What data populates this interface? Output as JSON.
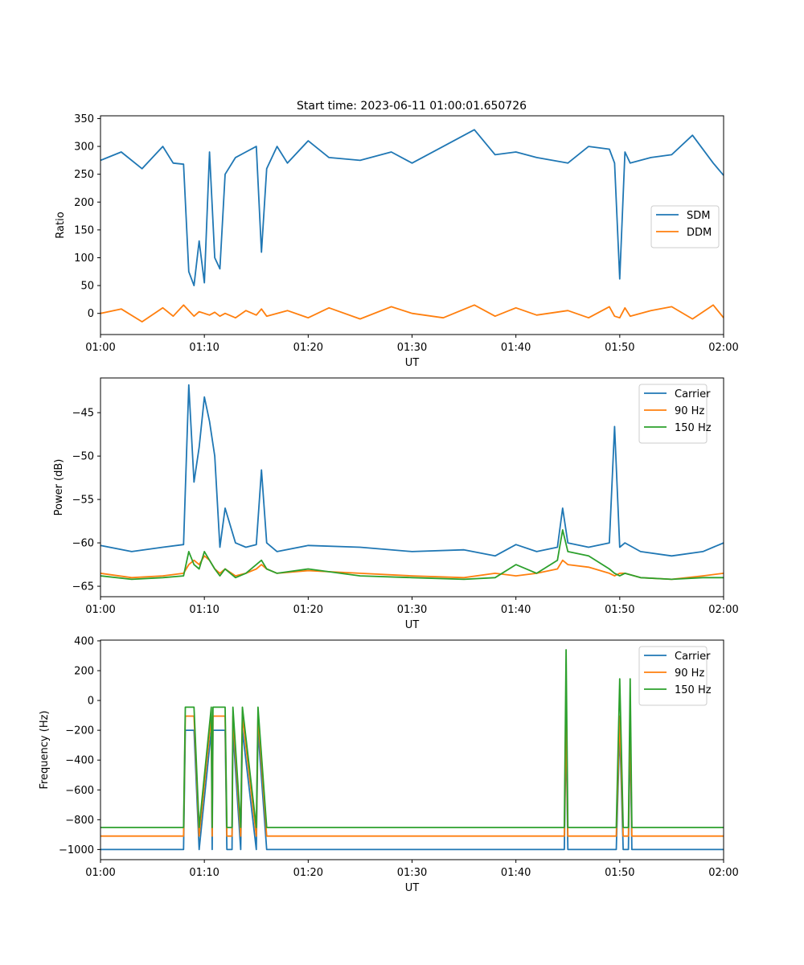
{
  "figure": {
    "title": "Start time: 2023-06-11 01:00:01.650726"
  },
  "colors": {
    "blue": "#1f77b4",
    "orange": "#ff7f0e",
    "green": "#2ca02c"
  },
  "chart_data": [
    {
      "type": "line",
      "title": "Start time: 2023-06-11 01:00:01.650726",
      "xlabel": "UT",
      "ylabel": "Ratio",
      "xlim": [
        "01:00",
        "02:00"
      ],
      "ylim": [
        -38,
        355
      ],
      "xticks": [
        "01:00",
        "01:10",
        "01:20",
        "01:30",
        "01:40",
        "01:50",
        "02:00"
      ],
      "yticks": [
        0,
        50,
        100,
        150,
        200,
        250,
        300,
        350
      ],
      "legend": "center-right",
      "grid": false,
      "x": [
        "01:00",
        "01:02",
        "01:04",
        "01:06",
        "01:07",
        "01:08",
        "01:08:30",
        "01:09",
        "01:09:30",
        "01:10",
        "01:10:30",
        "01:11",
        "01:11:30",
        "01:12",
        "01:13",
        "01:14",
        "01:15",
        "01:15:30",
        "01:16",
        "01:17",
        "01:18",
        "01:20",
        "01:22",
        "01:25",
        "01:28",
        "01:30",
        "01:33",
        "01:36",
        "01:38",
        "01:40",
        "01:42",
        "01:45",
        "01:47",
        "01:49",
        "01:49:30",
        "01:50",
        "01:50:30",
        "01:51",
        "01:53",
        "01:55",
        "01:57",
        "01:59",
        "02:00"
      ],
      "series": [
        {
          "name": "SDM",
          "color": "#1f77b4",
          "values": [
            275,
            290,
            260,
            300,
            270,
            268,
            75,
            50,
            130,
            55,
            290,
            100,
            80,
            250,
            280,
            290,
            300,
            110,
            260,
            300,
            270,
            310,
            280,
            275,
            290,
            270,
            300,
            330,
            285,
            290,
            280,
            270,
            300,
            295,
            270,
            62,
            290,
            270,
            280,
            285,
            320,
            270,
            248
          ]
        },
        {
          "name": "DDM",
          "color": "#ff7f0e",
          "values": [
            0,
            8,
            -15,
            10,
            -5,
            15,
            5,
            -5,
            3,
            0,
            -3,
            2,
            -5,
            0,
            -8,
            5,
            -3,
            8,
            -5,
            0,
            5,
            -8,
            10,
            -10,
            12,
            0,
            -8,
            15,
            -5,
            10,
            -3,
            5,
            -8,
            12,
            -5,
            -8,
            10,
            -5,
            5,
            12,
            -10,
            15,
            -8
          ]
        }
      ]
    },
    {
      "type": "line",
      "xlabel": "UT",
      "ylabel": "Power (dB)",
      "xlim": [
        "01:00",
        "02:00"
      ],
      "ylim": [
        -66.2,
        -41.0
      ],
      "xticks": [
        "01:00",
        "01:10",
        "01:20",
        "01:30",
        "01:40",
        "01:50",
        "02:00"
      ],
      "yticks": [
        -65,
        -60,
        -55,
        -50,
        -45
      ],
      "legend": "top-right",
      "grid": false,
      "x": [
        "01:00",
        "01:03",
        "01:06",
        "01:08",
        "01:08:30",
        "01:09",
        "01:09:30",
        "01:10",
        "01:10:30",
        "01:11",
        "01:11:30",
        "01:12",
        "01:13",
        "01:14",
        "01:15",
        "01:15:30",
        "01:16",
        "01:17",
        "01:20",
        "01:25",
        "01:30",
        "01:35",
        "01:38",
        "01:40",
        "01:42",
        "01:44",
        "01:44:30",
        "01:45",
        "01:47",
        "01:49",
        "01:49:30",
        "01:50",
        "01:50:30",
        "01:52",
        "01:55",
        "01:58",
        "02:00"
      ],
      "series": [
        {
          "name": "Carrier",
          "color": "#1f77b4",
          "values": [
            -60.3,
            -61,
            -60.5,
            -60.2,
            -41.8,
            -53,
            -49,
            -43.2,
            -46,
            -50,
            -60.5,
            -56,
            -60,
            -60.5,
            -60.2,
            -51.6,
            -60,
            -61,
            -60.3,
            -60.5,
            -61,
            -60.8,
            -61.5,
            -60.2,
            -61,
            -60.5,
            -56,
            -60,
            -60.5,
            -60,
            -46.6,
            -60.5,
            -60,
            -61,
            -61.5,
            -61,
            -60
          ]
        },
        {
          "name": "90 Hz",
          "color": "#ff7f0e",
          "values": [
            -63.5,
            -64,
            -63.8,
            -63.5,
            -62.5,
            -62,
            -62.5,
            -61.5,
            -62,
            -63,
            -63.5,
            -63,
            -63.8,
            -63.5,
            -63,
            -62.5,
            -63,
            -63.5,
            -63.2,
            -63.5,
            -63.8,
            -64,
            -63.5,
            -63.8,
            -63.5,
            -63,
            -62,
            -62.5,
            -62.8,
            -63.5,
            -63.8,
            -63.5,
            -63.5,
            -64,
            -64.2,
            -63.8,
            -63.5
          ]
        },
        {
          "name": "150 Hz",
          "color": "#2ca02c",
          "values": [
            -63.8,
            -64.2,
            -64,
            -63.8,
            -61,
            -62.5,
            -63,
            -61,
            -62,
            -63,
            -63.8,
            -63,
            -64,
            -63.5,
            -62.5,
            -62,
            -63,
            -63.5,
            -63,
            -63.8,
            -64,
            -64.2,
            -64,
            -62.5,
            -63.5,
            -62,
            -58.5,
            -61,
            -61.5,
            -63,
            -63.5,
            -63.8,
            -63.5,
            -64,
            -64.2,
            -64,
            -64
          ]
        }
      ]
    },
    {
      "type": "line",
      "xlabel": "UT",
      "ylabel": "Frequency (Hz)",
      "xlim": [
        "01:00",
        "02:00"
      ],
      "ylim": [
        -1068,
        405
      ],
      "xticks": [
        "01:00",
        "01:10",
        "01:20",
        "01:30",
        "01:40",
        "01:50",
        "02:00"
      ],
      "yticks": [
        -1000,
        -800,
        -600,
        -400,
        -200,
        0,
        200,
        400
      ],
      "legend": "top-right",
      "grid": false,
      "x": [
        "01:00",
        "01:08",
        "01:08:10",
        "01:09",
        "01:09:30",
        "01:10:40",
        "01:10:45",
        "01:10:50",
        "01:12",
        "01:12:10",
        "01:12:40",
        "01:12:45",
        "01:13:30",
        "01:13:40",
        "01:15",
        "01:15:10",
        "01:16",
        "01:16:10",
        "01:44:40",
        "01:44:50",
        "01:45",
        "01:49:40",
        "01:50",
        "01:50:20",
        "01:50:50",
        "01:51",
        "01:51:10",
        "02:00"
      ],
      "series": [
        {
          "name": "Carrier",
          "color": "#1f77b4",
          "values": [
            -1000,
            -1000,
            -200,
            -200,
            -1000,
            -200,
            -1000,
            -200,
            -200,
            -1000,
            -1000,
            -200,
            -1000,
            -200,
            -1000,
            -200,
            -1000,
            -1000,
            -1000,
            -200,
            -1000,
            -1000,
            -200,
            -1000,
            -1000,
            -200,
            -1000,
            -1000
          ]
        },
        {
          "name": "90 Hz",
          "color": "#ff7f0e",
          "values": [
            -910,
            -910,
            -105,
            -105,
            -910,
            -105,
            -910,
            -105,
            -105,
            -910,
            -910,
            -105,
            -910,
            -105,
            -910,
            -105,
            -910,
            -910,
            -910,
            -105,
            -910,
            -910,
            -105,
            -910,
            -910,
            -105,
            -910,
            -910
          ]
        },
        {
          "name": "150 Hz",
          "color": "#2ca02c",
          "values": [
            -852,
            -852,
            -45,
            -45,
            -852,
            -45,
            -852,
            -45,
            -45,
            -852,
            -852,
            -45,
            -852,
            -45,
            -852,
            -45,
            -852,
            -852,
            -852,
            340,
            -852,
            -852,
            145,
            -852,
            -852,
            145,
            -852,
            -852
          ]
        }
      ]
    }
  ]
}
